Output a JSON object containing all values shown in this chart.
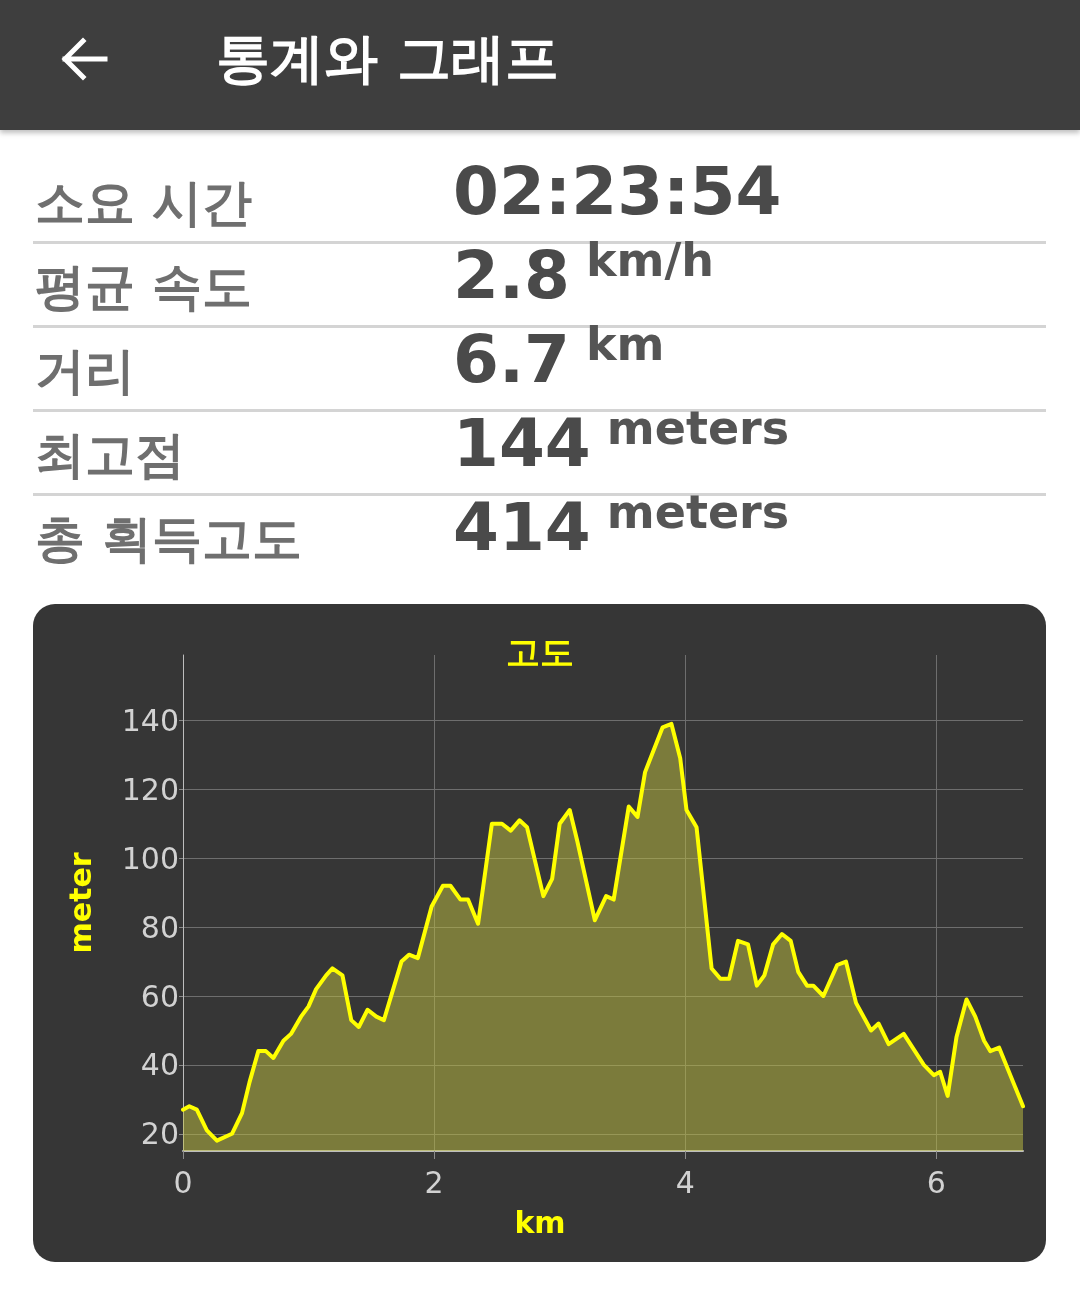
{
  "chart_data": [
    {
      "type": "other",
      "title": "통계와 그래프",
      "categories": [
        "소요 시간",
        "평균 속도",
        "거리",
        "최고점",
        "총 획득고도"
      ],
      "value_labels": [
        "02:23:54",
        "2.8 km/h",
        "6.7 km",
        "144 meters",
        "414 meters"
      ]
    },
    {
      "type": "area",
      "title": "고도",
      "xlabel": "km",
      "ylabel": "meter",
      "color": "#ffff00",
      "x": [
        0,
        0.05,
        0.11,
        0.19,
        0.27,
        0.39,
        0.47,
        0.53,
        0.6,
        0.66,
        0.72,
        0.8,
        0.86,
        0.94,
        1.0,
        1.06,
        1.14,
        1.19,
        1.27,
        1.34,
        1.4,
        1.47,
        1.54,
        1.6,
        1.74,
        1.8,
        1.87,
        1.98,
        2.07,
        2.13,
        2.21,
        2.27,
        2.35,
        2.46,
        2.54,
        2.61,
        2.68,
        2.74,
        2.87,
        2.94,
        3.0,
        3.08,
        3.14,
        3.28,
        3.37,
        3.43,
        3.55,
        3.62,
        3.68,
        3.82,
        3.89,
        3.96,
        4.01,
        4.09,
        4.21,
        4.28,
        4.35,
        4.42,
        4.5,
        4.57,
        4.63,
        4.7,
        4.77,
        4.84,
        4.9,
        4.97,
        5.02,
        5.1,
        5.21,
        5.28,
        5.36,
        5.48,
        5.54,
        5.62,
        5.74,
        5.9,
        5.98,
        6.03,
        6.09,
        6.16,
        6.24,
        6.31,
        6.38,
        6.43,
        6.5,
        6.69
      ],
      "values": [
        27,
        28,
        27,
        21,
        18,
        20,
        26,
        35,
        44,
        44,
        42,
        47,
        49,
        54,
        57,
        62,
        66,
        68,
        66,
        53,
        51,
        56,
        54,
        53,
        70,
        72,
        71,
        86,
        92,
        92,
        88,
        88,
        81,
        110,
        110,
        108,
        111,
        109,
        89,
        94,
        110,
        114,
        105,
        82,
        89,
        88,
        115,
        112,
        125,
        138,
        139,
        129,
        114,
        109,
        68,
        65,
        65,
        76,
        75,
        63,
        66,
        75,
        78,
        76,
        67,
        63,
        63,
        60,
        69,
        70,
        58,
        50,
        52,
        46,
        49,
        40,
        37,
        38,
        31,
        48,
        59,
        54,
        47,
        44,
        45,
        28
      ],
      "xlim": [
        0,
        6.69
      ],
      "ylim": [
        15,
        159
      ],
      "xticks": [
        0,
        2,
        4,
        6
      ],
      "yticks": [
        20,
        40,
        60,
        80,
        100,
        120,
        140
      ],
      "grid": true
    }
  ]
}
